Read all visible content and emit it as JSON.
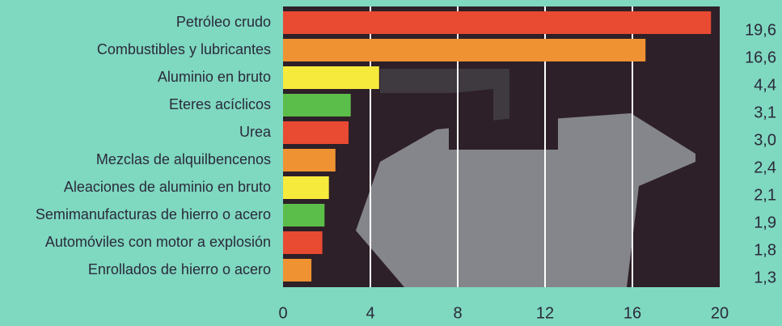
{
  "chart_data": {
    "type": "bar",
    "orientation": "horizontal",
    "categories": [
      "Petróleo crudo",
      "Combustibles y lubricantes",
      "Aluminio en bruto",
      "Eteres acíclicos",
      "Urea",
      "Mezclas de alquilbencenos",
      "Aleaciones de aluminio en bruto",
      "Semimanufacturas de hierro o acero",
      "Automóviles con motor a explosión",
      "Enrollados de hierro o acero"
    ],
    "values": [
      19.6,
      16.6,
      4.4,
      3.1,
      3.0,
      2.4,
      2.1,
      1.9,
      1.8,
      1.3
    ],
    "value_labels": [
      "19,6",
      "16,6",
      "4,4",
      "3,1",
      "3,0",
      "2,4",
      "2,1",
      "1,9",
      "1,8",
      "1,3"
    ],
    "colors": [
      "#e84a32",
      "#ef9232",
      "#f6ea3c",
      "#5cbe4a",
      "#e84a32",
      "#ef9232",
      "#f6ea3c",
      "#5cbe4a",
      "#e84a32",
      "#ef9232"
    ],
    "xlim": [
      0,
      20
    ],
    "xticks": [
      0,
      4,
      8,
      12,
      16,
      20
    ],
    "grid": true
  }
}
